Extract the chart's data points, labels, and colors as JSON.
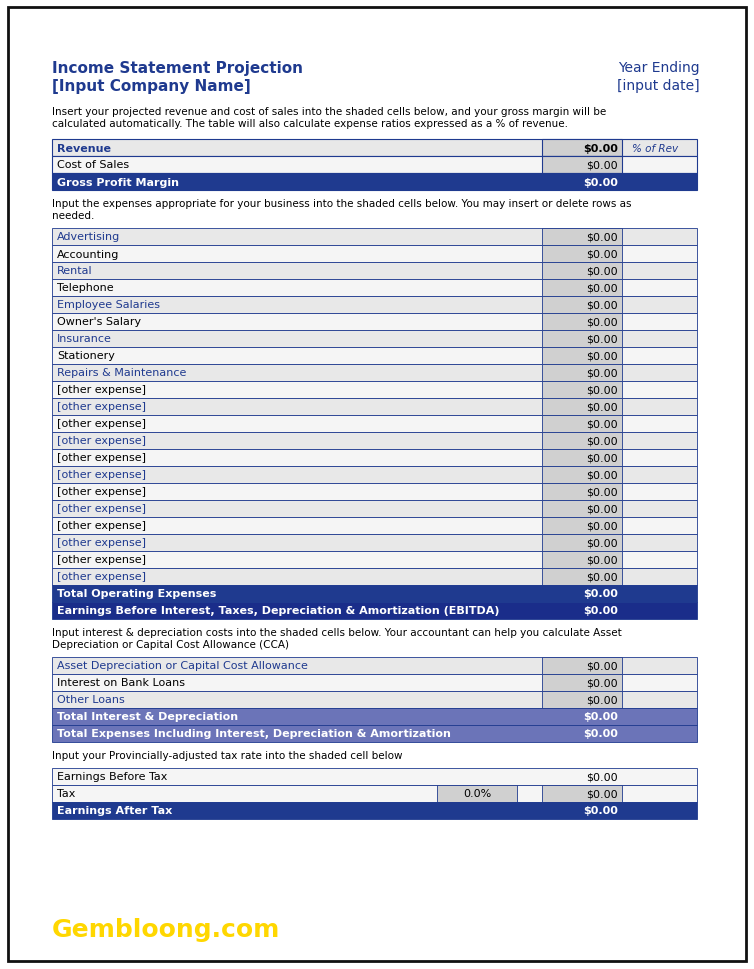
{
  "title_left_line1": "Income Statement Projection",
  "title_left_line2": "[Input Company Name]",
  "title_right_line1": "Year Ending",
  "title_right_line2": "[input date]",
  "col_blue": "#1F3A8F",
  "col_med_blue": "#6B74B8",
  "col_border": "#1F3A8F",
  "col_yellow": "#FFD700",
  "desc1": "Insert your projected revenue and cost of sales into the shaded cells below, and your gross margin will be\ncalculated automatically. The table will also calculate expense ratios expressed as a % of revenue.",
  "desc2": "Input the expenses appropriate for your business into the shaded cells below. You may insert or delete rows as\nneeded.",
  "desc3": "Input interest & depreciation costs into the shaded cells below. Your accountant can help you calculate Asset\nDepreciation or Capital Cost Allowance (CCA)",
  "desc4": "Input your Provincially-adjusted tax rate into the shaded cell below",
  "table1": [
    {
      "label": "Revenue",
      "value": "$0.00",
      "extra": "% of Rev",
      "bg": "#E8E8E8",
      "valbg": "#D0D0D0",
      "fc": "#1F3A8F",
      "bold": true,
      "rowbg": "white"
    },
    {
      "label": "Cost of Sales",
      "value": "$0.00",
      "extra": "",
      "bg": "#F5F5F5",
      "valbg": "#D0D0D0",
      "fc": "black",
      "bold": false,
      "rowbg": "#F5F5F5"
    },
    {
      "label": "Gross Profit Margin",
      "value": "$0.00",
      "extra": "",
      "bg": "#1F3A8F",
      "valbg": "#1F3A8F",
      "fc": "white",
      "bold": true,
      "rowbg": "#1F3A8F"
    }
  ],
  "table2": [
    {
      "label": "Advertising",
      "value": "$0.00",
      "bg": "#E8E8E8",
      "valbg": "#D0D0D0",
      "fc": "#1F3A8F"
    },
    {
      "label": "Accounting",
      "value": "$0.00",
      "bg": "#F5F5F5",
      "valbg": "#D0D0D0",
      "fc": "black"
    },
    {
      "label": "Rental",
      "value": "$0.00",
      "bg": "#E8E8E8",
      "valbg": "#D0D0D0",
      "fc": "#1F3A8F"
    },
    {
      "label": "Telephone",
      "value": "$0.00",
      "bg": "#F5F5F5",
      "valbg": "#D0D0D0",
      "fc": "black"
    },
    {
      "label": "Employee Salaries",
      "value": "$0.00",
      "bg": "#E8E8E8",
      "valbg": "#D0D0D0",
      "fc": "#1F3A8F"
    },
    {
      "label": "Owner's Salary",
      "value": "$0.00",
      "bg": "#F5F5F5",
      "valbg": "#D0D0D0",
      "fc": "black"
    },
    {
      "label": "Insurance",
      "value": "$0.00",
      "bg": "#E8E8E8",
      "valbg": "#D0D0D0",
      "fc": "#1F3A8F"
    },
    {
      "label": "Stationery",
      "value": "$0.00",
      "bg": "#F5F5F5",
      "valbg": "#D0D0D0",
      "fc": "black"
    },
    {
      "label": "Repairs & Maintenance",
      "value": "$0.00",
      "bg": "#E8E8E8",
      "valbg": "#D0D0D0",
      "fc": "#1F3A8F"
    },
    {
      "label": "[other expense]",
      "value": "$0.00",
      "bg": "#F5F5F5",
      "valbg": "#D0D0D0",
      "fc": "black"
    },
    {
      "label": "[other expense]",
      "value": "$0.00",
      "bg": "#E8E8E8",
      "valbg": "#D0D0D0",
      "fc": "#1F3A8F"
    },
    {
      "label": "[other expense]",
      "value": "$0.00",
      "bg": "#F5F5F5",
      "valbg": "#D0D0D0",
      "fc": "black"
    },
    {
      "label": "[other expense]",
      "value": "$0.00",
      "bg": "#E8E8E8",
      "valbg": "#D0D0D0",
      "fc": "#1F3A8F"
    },
    {
      "label": "[other expense]",
      "value": "$0.00",
      "bg": "#F5F5F5",
      "valbg": "#D0D0D0",
      "fc": "black"
    },
    {
      "label": "[other expense]",
      "value": "$0.00",
      "bg": "#E8E8E8",
      "valbg": "#D0D0D0",
      "fc": "#1F3A8F"
    },
    {
      "label": "[other expense]",
      "value": "$0.00",
      "bg": "#F5F5F5",
      "valbg": "#D0D0D0",
      "fc": "black"
    },
    {
      "label": "[other expense]",
      "value": "$0.00",
      "bg": "#E8E8E8",
      "valbg": "#D0D0D0",
      "fc": "#1F3A8F"
    },
    {
      "label": "[other expense]",
      "value": "$0.00",
      "bg": "#F5F5F5",
      "valbg": "#D0D0D0",
      "fc": "black"
    },
    {
      "label": "[other expense]",
      "value": "$0.00",
      "bg": "#E8E8E8",
      "valbg": "#D0D0D0",
      "fc": "#1F3A8F"
    },
    {
      "label": "[other expense]",
      "value": "$0.00",
      "bg": "#F5F5F5",
      "valbg": "#D0D0D0",
      "fc": "black"
    },
    {
      "label": "[other expense]",
      "value": "$0.00",
      "bg": "#E8E8E8",
      "valbg": "#D0D0D0",
      "fc": "#1F3A8F"
    },
    {
      "label": "Total Operating Expenses",
      "value": "$0.00",
      "bg": "#1F3A8F",
      "valbg": "#1F3A8F",
      "fc": "white",
      "bold": true
    },
    {
      "label": "Earnings Before Interest, Taxes, Depreciation & Amortization (EBITDA)",
      "value": "$0.00",
      "bg": "#1a2d8a",
      "valbg": "#1a2d8a",
      "fc": "white",
      "bold": true
    }
  ],
  "table3": [
    {
      "label": "Asset Depreciation or Capital Cost Allowance",
      "value": "$0.00",
      "bg": "#E8E8E8",
      "valbg": "#D0D0D0",
      "fc": "#1F3A8F"
    },
    {
      "label": "Interest on Bank Loans",
      "value": "$0.00",
      "bg": "#F5F5F5",
      "valbg": "#D0D0D0",
      "fc": "black"
    },
    {
      "label": "Other Loans",
      "value": "$0.00",
      "bg": "#E8E8E8",
      "valbg": "#D0D0D0",
      "fc": "#1F3A8F"
    },
    {
      "label": "Total Interest & Depreciation",
      "value": "$0.00",
      "bg": "#6B74B8",
      "valbg": "#6B74B8",
      "fc": "white",
      "bold": true
    },
    {
      "label": "Total Expenses Including Interest, Depreciation & Amortization",
      "value": "$0.00",
      "bg": "#6B74B8",
      "valbg": "#6B74B8",
      "fc": "white",
      "bold": true
    }
  ],
  "table4": [
    {
      "label": "Earnings Before Tax",
      "value": "$0.00",
      "extra": "",
      "bg": "#F5F5F5",
      "valbg": "#F5F5F5",
      "midbg": "#F5F5F5",
      "fc": "black"
    },
    {
      "label": "Tax",
      "value": "$0.00",
      "extra": "0.0%",
      "bg": "#F5F5F5",
      "valbg": "#D0D0D0",
      "midbg": "#D0D0D0",
      "fc": "black"
    },
    {
      "label": "Earnings After Tax",
      "value": "$0.00",
      "extra": "",
      "bg": "#1F3A8F",
      "valbg": "#1F3A8F",
      "midbg": "#1F3A8F",
      "fc": "white",
      "bold": true
    }
  ],
  "watermark": "Gembloong.com"
}
